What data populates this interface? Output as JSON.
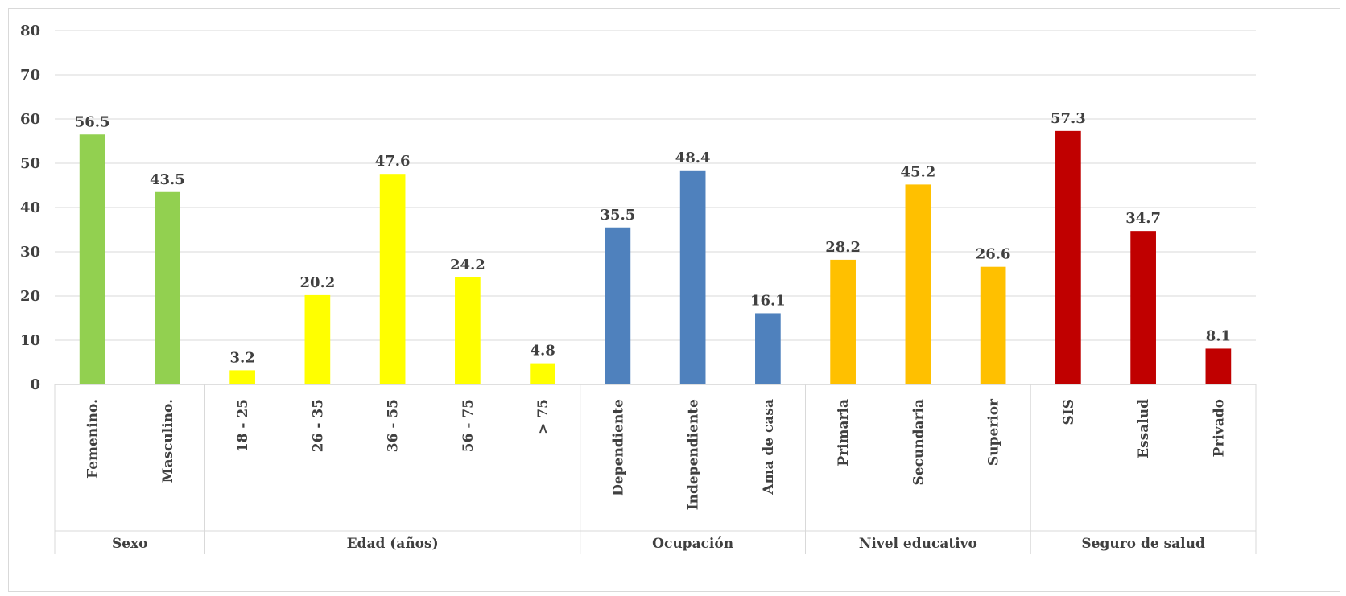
{
  "chart_data": {
    "type": "bar",
    "title": "",
    "xlabel": "",
    "ylabel": "",
    "ylim": [
      0,
      80
    ],
    "yticks": [
      0,
      10,
      20,
      30,
      40,
      50,
      60,
      70,
      80
    ],
    "grid": true,
    "groups": [
      {
        "name": "Sexo",
        "color": "#92d050",
        "categories": [
          "Femenino.",
          "Masculino."
        ],
        "values": [
          56.5,
          43.5
        ]
      },
      {
        "name": "Edad (años)",
        "color": "#ffff00",
        "categories": [
          "18 - 25",
          "26 - 35",
          "36 - 55",
          "56 - 75",
          "> 75"
        ],
        "values": [
          3.2,
          20.2,
          47.6,
          24.2,
          4.8
        ]
      },
      {
        "name": "Ocupación",
        "color": "#4f81bd",
        "categories": [
          "Dependiente",
          "Independiente",
          "Ama de casa"
        ],
        "values": [
          35.5,
          48.4,
          16.1
        ]
      },
      {
        "name": "Nivel educativo",
        "color": "#ffc000",
        "categories": [
          "Primaria",
          "Secundaria",
          "Superior"
        ],
        "values": [
          28.2,
          45.2,
          26.6
        ]
      },
      {
        "name": "Seguro de salud",
        "color": "#c00000",
        "categories": [
          "SIS",
          "Essalud",
          "Privado"
        ],
        "values": [
          57.3,
          34.7,
          8.1
        ]
      }
    ]
  }
}
